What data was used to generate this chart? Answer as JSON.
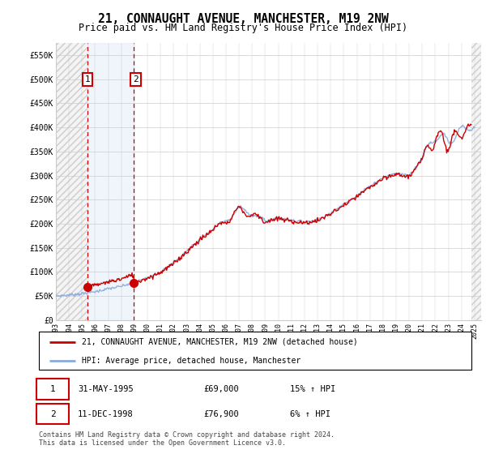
{
  "title": "21, CONNAUGHT AVENUE, MANCHESTER, M19 2NW",
  "subtitle": "Price paid vs. HM Land Registry's House Price Index (HPI)",
  "title_fontsize": 10.5,
  "subtitle_fontsize": 8.5,
  "ylim": [
    0,
    575000
  ],
  "yticks": [
    0,
    50000,
    100000,
    150000,
    200000,
    250000,
    300000,
    350000,
    400000,
    450000,
    500000,
    550000
  ],
  "ytick_labels": [
    "£0",
    "£50K",
    "£100K",
    "£150K",
    "£200K",
    "£250K",
    "£300K",
    "£350K",
    "£400K",
    "£450K",
    "£500K",
    "£550K"
  ],
  "xmin": 1993,
  "xmax": 2025.5,
  "transaction1_date": 1995.41,
  "transaction1_price": 69000,
  "transaction2_date": 1998.94,
  "transaction2_price": 76900,
  "legend_line1": "21, CONNAUGHT AVENUE, MANCHESTER, M19 2NW (detached house)",
  "legend_line2": "HPI: Average price, detached house, Manchester",
  "footer": "Contains HM Land Registry data © Crown copyright and database right 2024.\nThis data is licensed under the Open Government Licence v3.0.",
  "red_color": "#cc0000",
  "blue_color": "#88aadd",
  "grid_color": "#cccccc",
  "box_color": "#cc0000",
  "hatch_left_end": 1995.41,
  "shade_start": 1995.41,
  "shade_end": 1998.94,
  "hatch_right_start": 2024.75
}
